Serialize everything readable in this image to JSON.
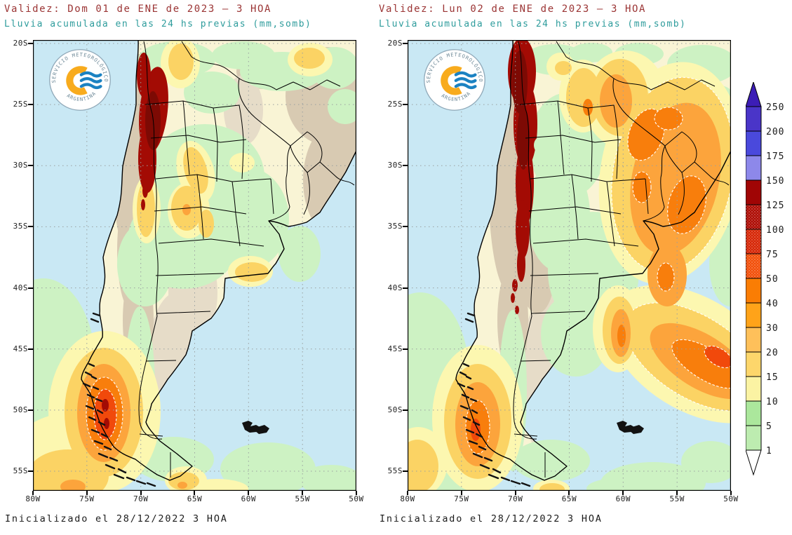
{
  "figure": {
    "background": "#ffffff",
    "kind": "precipitation-forecast-maps"
  },
  "panels": [
    {
      "title": "Validez: Dom 01 de ENE de 2023 – 3 HOA",
      "subtitle": "Lluvia acumulada en las 24 hs previas (mm,somb)",
      "footer": "Inicializado el 28/12/2022 3 HOA"
    },
    {
      "title": "Validez: Lun 02 de ENE de 2023 – 3 HOA",
      "subtitle": "Lluvia acumulada en las 24 hs previas (mm,somb)",
      "footer": "Inicializado el 28/12/2022 3 HOA"
    }
  ],
  "logo": {
    "top_text": "SERVICIO METEOROLÓGICO NACIONAL",
    "bottom_text": "ARGENTINA",
    "ring_color": "#8fa8b8",
    "sun_color": "#f8ab1d",
    "wave_color": "#1b82c2"
  },
  "axes": {
    "lat_labels": [
      "20S",
      "25S",
      "30S",
      "35S",
      "40S",
      "45S",
      "50S",
      "55S"
    ],
    "lon_labels": [
      "80W",
      "75W",
      "70W",
      "65W",
      "60W",
      "55W",
      "50W"
    ]
  },
  "colorbar": {
    "unit": "mm",
    "labels": [
      "250",
      "200",
      "175",
      "150",
      "125",
      "100",
      "75",
      "50",
      "40",
      "30",
      "20",
      "15",
      "10",
      "5",
      "1"
    ],
    "segment_colors": [
      "#4a35c8",
      "#4a49dc",
      "#8d88ea",
      "#a00505",
      "#ad0a02",
      "#d62403",
      "#f24d07",
      "#fa7d04",
      "#ffa319",
      "#fec05a",
      "#fdd66b",
      "#fbf3a3",
      "#abe79c",
      "#bdecb0"
    ],
    "speckled_segments": [
      4,
      5,
      6
    ],
    "arrow_top_color": "#3c1db6",
    "arrow_bottom_color": "#ffffff"
  },
  "colors": {
    "title": "#9b3434",
    "subtitle": "#2e9c9c",
    "footer": "#1b1b1b",
    "ocean": "#c9e8f4",
    "land": "#f9f4d5",
    "terrain": "#d8cab2",
    "grid": "#9aa0a0",
    "map_palette": {
      "green_1_10": "#cdf2c3",
      "pale_yellow_10_15": "#fcf7b0",
      "gold_15_20": "#fbd364",
      "orange_20_40": "#fca43c",
      "dark_orange_40_50": "#f87e0c",
      "red_orange_50_75": "#f1490b",
      "red_75_100": "#d62403",
      "dark_red_100_150": "#a30b04",
      "maroon_core": "#7d0a04"
    }
  }
}
